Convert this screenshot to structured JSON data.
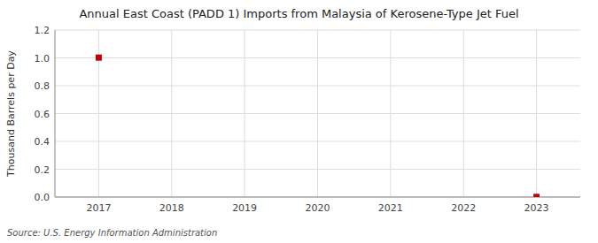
{
  "chart_data": {
    "type": "scatter",
    "title": "Annual East Coast (PADD 1) Imports from Malaysia of Kerosene-Type Jet Fuel",
    "ylabel": "Thousand Barrels per Day",
    "source": "Source: U.S. Energy Information Administration",
    "x": [
      2017,
      2023
    ],
    "values": [
      1.002,
      0.001
    ],
    "color": "#c0000a",
    "marker": "square",
    "xlim": [
      2016.4,
      2023.6
    ],
    "ylim": [
      0.0,
      1.2
    ],
    "xticks": [
      2017,
      2018,
      2019,
      2020,
      2021,
      2022,
      2023
    ],
    "yticks": [
      {
        "value": 0,
        "label": "0.0"
      },
      0.2,
      0.4,
      0.6,
      0.8,
      {
        "value": 1,
        "label": "1.0"
      },
      1.2
    ],
    "grid": true
  }
}
